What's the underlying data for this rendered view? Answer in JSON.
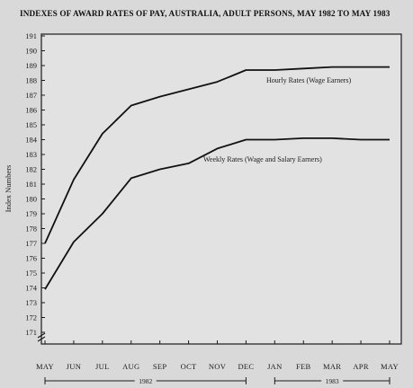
{
  "chart_data": {
    "type": "line",
    "title": "INDEXES OF AWARD RATES OF PAY, AUSTRALIA, ADULT PERSONS, MAY 1982 TO MAY 1983",
    "ylabel": "Index Numbers",
    "xlabel": "",
    "ylim": [
      171,
      191
    ],
    "yticks": [
      "171",
      "172",
      "173",
      "174",
      "175",
      "176",
      "177",
      "178",
      "179",
      "180",
      "181",
      "182",
      "183",
      "184",
      "185",
      "186",
      "187",
      "188",
      "189",
      "190",
      "191"
    ],
    "categories": [
      "MAY",
      "JUN",
      "JUL",
      "AUG",
      "SEP",
      "OCT",
      "NOV",
      "DEC",
      "JAN",
      "FEB",
      "MAR",
      "APR",
      "MAY"
    ],
    "year_groups": [
      {
        "label": "1982",
        "from": 0,
        "to": 7
      },
      {
        "label": "1983",
        "from": 8,
        "to": 12
      }
    ],
    "grid": false,
    "series": [
      {
        "name": "Hourly Rates (Wage Earners)",
        "values": [
          177.0,
          181.3,
          184.4,
          186.3,
          186.9,
          187.4,
          187.9,
          188.7,
          188.7,
          188.8,
          188.9,
          188.9,
          188.9
        ]
      },
      {
        "name": "Weekly Rates (Wage and Salary Earners)",
        "values": [
          173.9,
          177.1,
          179.0,
          181.4,
          182.0,
          182.4,
          183.4,
          184.0,
          184.0,
          184.1,
          184.1,
          184.0,
          184.0
        ]
      }
    ]
  }
}
